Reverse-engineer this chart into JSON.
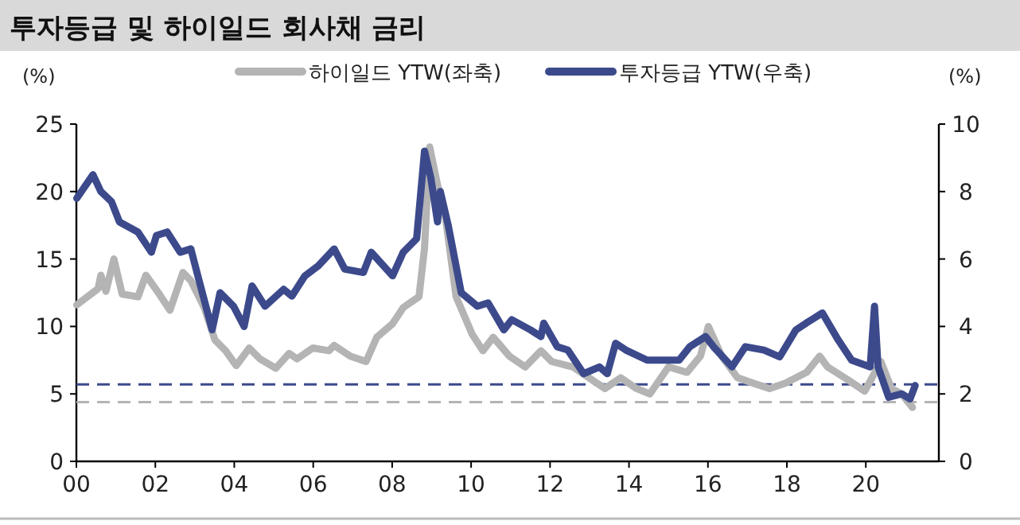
{
  "chart_data": {
    "type": "line",
    "title": "투자등급 및 하이일드 회사채 금리",
    "ylabel": "(%)",
    "y2label": "(%)",
    "legend": "top",
    "grid": false,
    "marker": "none",
    "line_style": "solid",
    "xlim": [
      2000,
      2021.85
    ],
    "xticks": [
      {
        "value": 2000,
        "label": "00"
      },
      {
        "value": 2002,
        "label": "02"
      },
      {
        "value": 2004,
        "label": "04"
      },
      {
        "value": 2006,
        "label": "06"
      },
      {
        "value": 2008,
        "label": "08"
      },
      {
        "value": 2010,
        "label": "10"
      },
      {
        "value": 2012,
        "label": "12"
      },
      {
        "value": 2014,
        "label": "14"
      },
      {
        "value": 2016,
        "label": "16"
      },
      {
        "value": 2018,
        "label": "18"
      },
      {
        "value": 2020,
        "label": "20"
      }
    ],
    "ylim": [
      0,
      25
    ],
    "yticks": [
      0,
      5,
      10,
      15,
      20,
      25
    ],
    "y2lim": [
      0,
      10
    ],
    "y2ticks": [
      0,
      2,
      4,
      6,
      8,
      10
    ],
    "ref_lines": [
      {
        "axis": "y",
        "value": 4.4,
        "color": "#b4b4b4",
        "line_style": "dashed"
      },
      {
        "axis": "y2",
        "value": 2.28,
        "color": "#3c4a8c",
        "line_style": "dashed"
      }
    ],
    "series": [
      {
        "name": "하이일드 YTW(좌축)",
        "color": "#b4b4b4",
        "axis": "y",
        "x": [
          2000.01,
          2000.55,
          2000.62,
          2000.75,
          2000.95,
          2001.16,
          2001.56,
          2001.76,
          2002.1,
          2002.37,
          2002.7,
          2002.9,
          2003.24,
          2003.51,
          2003.78,
          2004.05,
          2004.38,
          2004.65,
          2005.05,
          2005.39,
          2005.59,
          2005.99,
          2006.4,
          2006.53,
          2006.94,
          2007.34,
          2007.61,
          2008.01,
          2008.28,
          2008.68,
          2008.82,
          2008.95,
          2009.15,
          2009.35,
          2009.62,
          2010.03,
          2010.3,
          2010.56,
          2010.97,
          2011.37,
          2011.77,
          2012.04,
          2012.58,
          2012.98,
          2013.39,
          2013.79,
          2014.19,
          2014.53,
          2015.0,
          2015.47,
          2015.81,
          2016.01,
          2016.35,
          2016.75,
          2017.15,
          2017.56,
          2017.96,
          2018.5,
          2018.83,
          2019.03,
          2019.57,
          2019.97,
          2020.38,
          2020.65,
          2020.91,
          2021.18
        ],
        "values": [
          11.6,
          12.8,
          13.8,
          12.6,
          15.0,
          12.4,
          12.2,
          13.8,
          12.4,
          11.2,
          14.0,
          13.4,
          11.4,
          9.0,
          8.2,
          7.1,
          8.4,
          7.6,
          6.9,
          8.0,
          7.6,
          8.4,
          8.2,
          8.6,
          7.8,
          7.4,
          9.2,
          10.2,
          11.4,
          12.2,
          15.8,
          23.3,
          20.5,
          18.1,
          12.2,
          9.4,
          8.2,
          9.2,
          7.8,
          7.0,
          8.2,
          7.4,
          7.0,
          6.2,
          5.4,
          6.2,
          5.4,
          5.0,
          7.0,
          6.6,
          7.8,
          10.0,
          7.8,
          6.2,
          5.8,
          5.4,
          5.8,
          6.6,
          7.8,
          7.0,
          6.0,
          5.2,
          7.4,
          5.4,
          5.0,
          4.0
        ]
      },
      {
        "name": "투자등급 YTW(우축)",
        "color": "#3c4a8c",
        "axis": "y2",
        "x": [
          2000.01,
          2000.42,
          2000.62,
          2000.89,
          2001.09,
          2001.56,
          2001.9,
          2002.03,
          2002.3,
          2002.63,
          2002.9,
          2003.1,
          2003.44,
          2003.64,
          2003.98,
          2004.25,
          2004.45,
          2004.78,
          2005.25,
          2005.46,
          2005.79,
          2006.13,
          2006.53,
          2006.8,
          2007.27,
          2007.47,
          2008.01,
          2008.28,
          2008.62,
          2008.82,
          2008.98,
          2009.15,
          2009.22,
          2009.42,
          2009.75,
          2010.16,
          2010.43,
          2010.83,
          2011.03,
          2011.5,
          2011.77,
          2011.84,
          2012.18,
          2012.45,
          2012.85,
          2013.25,
          2013.45,
          2013.66,
          2013.92,
          2014.46,
          2014.87,
          2015.27,
          2015.54,
          2015.94,
          2016.14,
          2016.61,
          2016.95,
          2017.42,
          2017.82,
          2018.23,
          2018.49,
          2018.9,
          2019.3,
          2019.64,
          2020.11,
          2020.22,
          2020.31,
          2020.58,
          2020.91,
          2021.12,
          2021.25
        ],
        "values": [
          7.8,
          8.5,
          8.0,
          7.7,
          7.1,
          6.8,
          6.2,
          6.7,
          6.8,
          6.2,
          6.3,
          5.4,
          3.9,
          5.0,
          4.6,
          4.0,
          5.2,
          4.6,
          5.1,
          4.9,
          5.5,
          5.8,
          6.3,
          5.7,
          5.6,
          6.2,
          5.5,
          6.2,
          6.6,
          9.2,
          8.4,
          7.1,
          8.0,
          7.0,
          5.0,
          4.6,
          4.7,
          3.9,
          4.2,
          3.9,
          3.7,
          4.1,
          3.4,
          3.3,
          2.6,
          2.8,
          2.6,
          3.5,
          3.3,
          3.0,
          3.0,
          3.0,
          3.4,
          3.7,
          3.4,
          2.8,
          3.4,
          3.3,
          3.1,
          3.9,
          4.1,
          4.4,
          3.6,
          3.0,
          2.8,
          4.6,
          2.8,
          1.9,
          2.0,
          1.85,
          2.25
        ]
      }
    ]
  }
}
